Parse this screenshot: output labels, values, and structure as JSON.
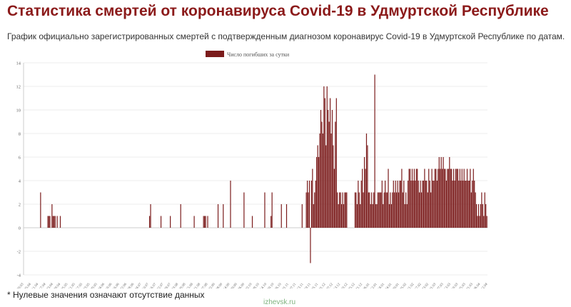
{
  "page": {
    "title": "Статистика смертей от коронавируса Covid-19 в Удмуртской Республике",
    "subtitle": "График официально зарегистрированных смертей с подтвержденным диагнозом коронавирус Covid-19 в Удмуртской Республике по датам.",
    "footnote": "* Нулевые значения означают отсутствие данных",
    "watermark": "izhevsk.ru"
  },
  "chart_data": {
    "type": "bar",
    "legend": {
      "label": "Число погибших за сутки",
      "position": "top-center"
    },
    "colors": {
      "bar": "#7b1c1c",
      "grid": "#ececec",
      "axis": "#cccccc",
      "tick_text": "#666666"
    },
    "ylim": [
      -4,
      14
    ],
    "yticks": [
      -4,
      -2,
      0,
      2,
      4,
      6,
      8,
      10,
      12,
      14
    ],
    "grid": true,
    "xlabels": [
      "30.03",
      "05.04",
      "11.04",
      "17.04",
      "23.04",
      "29.04",
      "05.05",
      "11.05",
      "17.05",
      "23.05",
      "29.05",
      "04.06",
      "10.06",
      "16.06",
      "22.06",
      "28.06",
      "04.07",
      "10.07",
      "16.07",
      "22.07",
      "28.07",
      "03.08",
      "09.08",
      "15.08",
      "21.08",
      "27.08",
      "02.09",
      "08.09",
      "14.09",
      "20.09",
      "26.09",
      "02.10",
      "08.10",
      "14.10",
      "20.10",
      "26.10",
      "01.11",
      "07.11",
      "13.11",
      "19.11",
      "25.11",
      "01.12",
      "07.12",
      "13.12",
      "19.12",
      "25.12",
      "31.12",
      "06.01",
      "12.01",
      "18.01",
      "24.01",
      "30.01",
      "05.02",
      "11.02",
      "17.02",
      "23.02",
      "01.03",
      "07.03",
      "13.03",
      "19.03",
      "25.03",
      "31.03",
      "06.04",
      "12.04"
    ],
    "values": [
      0,
      0,
      0,
      0,
      0,
      0,
      0,
      0,
      0,
      0,
      0,
      0,
      0,
      0,
      0,
      0,
      3,
      0,
      0,
      0,
      0,
      0,
      0,
      1,
      1,
      1,
      0,
      2,
      1,
      1,
      1,
      0,
      1,
      0,
      0,
      1,
      0,
      0,
      0,
      0,
      0,
      0,
      0,
      0,
      0,
      0,
      0,
      0,
      0,
      0,
      0,
      0,
      0,
      0,
      0,
      0,
      0,
      0,
      0,
      0,
      0,
      0,
      0,
      0,
      0,
      0,
      0,
      0,
      0,
      0,
      0,
      0,
      0,
      0,
      0,
      0,
      0,
      0,
      0,
      0,
      0,
      0,
      0,
      0,
      0,
      0,
      0,
      0,
      0,
      0,
      0,
      0,
      0,
      0,
      0,
      0,
      0,
      0,
      0,
      0,
      0,
      0,
      0,
      0,
      0,
      0,
      0,
      0,
      0,
      0,
      0,
      0,
      0,
      0,
      0,
      0,
      0,
      0,
      0,
      0,
      0,
      1,
      2,
      0,
      0,
      0,
      0,
      0,
      0,
      0,
      0,
      0,
      1,
      0,
      0,
      0,
      0,
      0,
      0,
      0,
      0,
      1,
      0,
      0,
      0,
      0,
      0,
      0,
      0,
      0,
      0,
      2,
      0,
      0,
      0,
      0,
      0,
      0,
      0,
      0,
      0,
      0,
      0,
      0,
      1,
      0,
      0,
      0,
      0,
      0,
      0,
      0,
      0,
      1,
      1,
      1,
      0,
      1,
      0,
      0,
      0,
      0,
      0,
      0,
      0,
      0,
      0,
      2,
      0,
      0,
      0,
      0,
      2,
      0,
      0,
      0,
      0,
      0,
      0,
      4,
      0,
      0,
      0,
      0,
      0,
      0,
      0,
      0,
      0,
      0,
      0,
      0,
      3,
      0,
      0,
      0,
      0,
      0,
      0,
      0,
      1,
      0,
      0,
      0,
      0,
      0,
      0,
      0,
      0,
      0,
      0,
      0,
      3,
      0,
      0,
      0,
      0,
      0,
      1,
      3,
      0,
      0,
      0,
      0,
      0,
      0,
      0,
      0,
      2,
      0,
      0,
      0,
      0,
      2,
      0,
      0,
      0,
      0,
      0,
      0,
      0,
      0,
      0,
      0,
      0,
      0,
      0,
      0,
      2,
      0,
      0,
      0,
      3,
      4,
      3,
      4,
      -3,
      4,
      5,
      2,
      3,
      4,
      6,
      7,
      6,
      8,
      10,
      9,
      8,
      12,
      11,
      7,
      12,
      10,
      9,
      11,
      8,
      10,
      7,
      5,
      9,
      11,
      3,
      2,
      3,
      3,
      2,
      3,
      2,
      3,
      3,
      3,
      0,
      0,
      0,
      0,
      0,
      0,
      0,
      3,
      3,
      2,
      4,
      3,
      2,
      4,
      5,
      3,
      6,
      5,
      8,
      7,
      3,
      3,
      2,
      3,
      2,
      3,
      13,
      2,
      2,
      3,
      3,
      3,
      3,
      4,
      2,
      3,
      4,
      3,
      3,
      5,
      2,
      3,
      2,
      3,
      4,
      3,
      4,
      3,
      4,
      3,
      4,
      4,
      5,
      3,
      4,
      2,
      3,
      2,
      4,
      5,
      5,
      4,
      5,
      4,
      5,
      4,
      5,
      5,
      4,
      3,
      4,
      3,
      4,
      4,
      5,
      4,
      4,
      3,
      5,
      4,
      3,
      5,
      4,
      4,
      5,
      5,
      4,
      5,
      6,
      5,
      6,
      5,
      6,
      5,
      5,
      4,
      5,
      5,
      6,
      5,
      5,
      4,
      5,
      4,
      5,
      5,
      5,
      4,
      5,
      4,
      5,
      4,
      5,
      4,
      4,
      5,
      4,
      4,
      5,
      3,
      4,
      5,
      4,
      3,
      2,
      1,
      2,
      1,
      2,
      3,
      2,
      1,
      3,
      2,
      1
    ]
  }
}
